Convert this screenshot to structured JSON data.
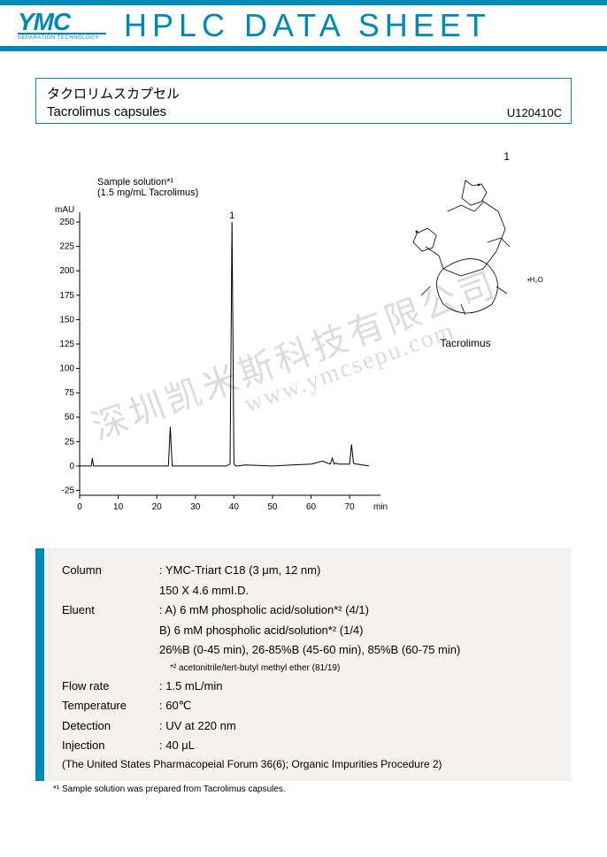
{
  "header": {
    "logo_main": "YMC",
    "logo_sub": "SEPARATION TECHNOLOGY",
    "title": "HPLC DATA SHEET"
  },
  "titlebox": {
    "jp": "タクロリムスカプセル",
    "en": "Tacrolimus capsules",
    "code": "U120410C"
  },
  "sample": {
    "line1": "Sample solution*¹",
    "line2": "(1.5 mg/mL Tacrolimus)"
  },
  "molecule": {
    "num": "1",
    "name": "Tacrolimus",
    "h2o": "•H₂O"
  },
  "watermarks": {
    "w1": "深圳凯米斯科技有限公司",
    "w2": "www.ymcsepu.com"
  },
  "chart": {
    "y_unit": "mAU",
    "x_unit": "min",
    "y_ticks": [
      -25,
      0,
      25,
      50,
      75,
      100,
      125,
      150,
      175,
      200,
      225,
      250
    ],
    "y_range": [
      -30,
      260
    ],
    "x_ticks": [
      0,
      10,
      20,
      30,
      40,
      50,
      60,
      70
    ],
    "x_range": [
      0,
      78
    ],
    "peak_label": "1",
    "line_color": "#000000",
    "axis_color": "#000000",
    "text_color": "#000000",
    "font_size": 10,
    "trace_x": [
      0,
      2,
      3,
      3.3,
      3.6,
      5,
      8,
      15,
      22,
      23,
      23.5,
      24,
      24.5,
      25,
      35,
      38,
      39,
      39.5,
      40,
      40.5,
      41,
      43,
      50,
      55,
      60,
      63,
      65,
      65.5,
      66,
      66.5,
      67,
      70,
      70.5,
      71,
      71.5,
      72,
      75
    ],
    "trace_y": [
      0,
      0,
      0,
      8,
      0,
      0,
      0,
      0,
      0,
      0,
      40,
      0,
      0,
      0,
      0,
      0,
      2,
      250,
      2,
      0,
      0,
      1,
      0,
      1,
      2,
      5,
      2,
      8,
      2,
      3,
      2,
      2,
      22,
      3,
      2,
      2,
      0
    ]
  },
  "conditions": {
    "rows": [
      {
        "label": "Column",
        "value": ": YMC-Triart C18 (3 μm, 12 nm)"
      },
      {
        "label": "",
        "value": "  150 X 4.6 mmI.D."
      },
      {
        "label": "Eluent",
        "value": ": A) 6 mM phospholic acid/solution*² (4/1)"
      },
      {
        "label": "",
        "value": "  B) 6 mM phospholic acid/solution*² (1/4)"
      },
      {
        "label": "",
        "value": "  26%B (0-45 min), 26-85%B (45-60 min), 85%B (60-75 min)"
      }
    ],
    "sub_small": "*² acetonitrile/tert-butyl methyl ether (81/19)",
    "rows2": [
      {
        "label": "Flow rate",
        "value": ": 1.5 mL/min"
      },
      {
        "label": "Temperature",
        "value": ": 60℃"
      },
      {
        "label": "Detection",
        "value": ": UV at 220 nm"
      },
      {
        "label": "Injection",
        "value": ": 40 μL"
      }
    ],
    "footer": "(The United States Pharmacopeial Forum 36(6); Organic Impurities Procedure 2)"
  },
  "footnote": "*¹ Sample solution was prepared from Tacrolimus capsules."
}
